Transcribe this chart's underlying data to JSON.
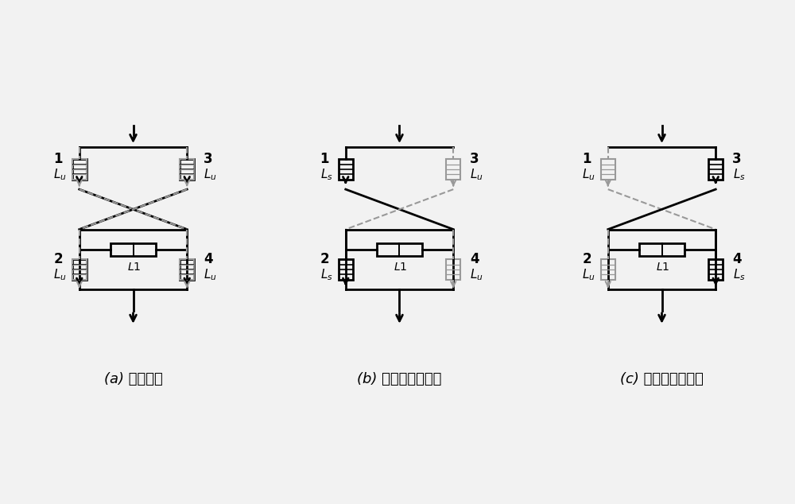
{
  "bg_color": "#f2f2f2",
  "line_color": "#000000",
  "dashed_color": "#999999",
  "title_a": "(a) 正常运行",
  "title_b": "(b) 故障电流正半周",
  "title_c": "(c) 故障电流负半周",
  "diagrams": [
    {
      "name": "a",
      "n1": "1",
      "l1_label": "$L_u$",
      "n2": "2",
      "l2_label": "$L_u$",
      "n3": "3",
      "l3_label": "$L_u$",
      "n4": "4",
      "l4_label": "$L_u$",
      "left_top_solid": true,
      "right_top_solid": true,
      "left_bot_solid": true,
      "right_bot_solid": true,
      "left_top_dashed": true,
      "right_top_dashed": true,
      "left_bot_dashed": true,
      "right_bot_dashed": true,
      "cross_tl_br_solid": true,
      "cross_tr_bl_solid": true,
      "cross_tl_br_dashed": true,
      "cross_tr_bl_dashed": true
    },
    {
      "name": "b",
      "n1": "1",
      "l1_label": "$L_s$",
      "n2": "2",
      "l2_label": "$L_s$",
      "n3": "3",
      "l3_label": "$L_u$",
      "n4": "4",
      "l4_label": "$L_u$",
      "left_top_solid": true,
      "right_top_solid": false,
      "left_bot_solid": true,
      "right_bot_solid": false,
      "left_top_dashed": false,
      "right_top_dashed": true,
      "left_bot_dashed": false,
      "right_bot_dashed": true,
      "cross_tl_br_solid": true,
      "cross_tr_bl_solid": false,
      "cross_tl_br_dashed": false,
      "cross_tr_bl_dashed": true
    },
    {
      "name": "c",
      "n1": "1",
      "l1_label": "$L_u$",
      "n2": "2",
      "l2_label": "$L_u$",
      "n3": "3",
      "l3_label": "$L_s$",
      "n4": "4",
      "l4_label": "$L_s$",
      "left_top_solid": false,
      "right_top_solid": true,
      "left_bot_solid": false,
      "right_bot_solid": true,
      "left_top_dashed": true,
      "right_top_dashed": false,
      "left_bot_dashed": true,
      "right_bot_dashed": false,
      "cross_tl_br_solid": false,
      "cross_tr_bl_solid": true,
      "cross_tl_br_dashed": true,
      "cross_tr_bl_dashed": false
    }
  ]
}
